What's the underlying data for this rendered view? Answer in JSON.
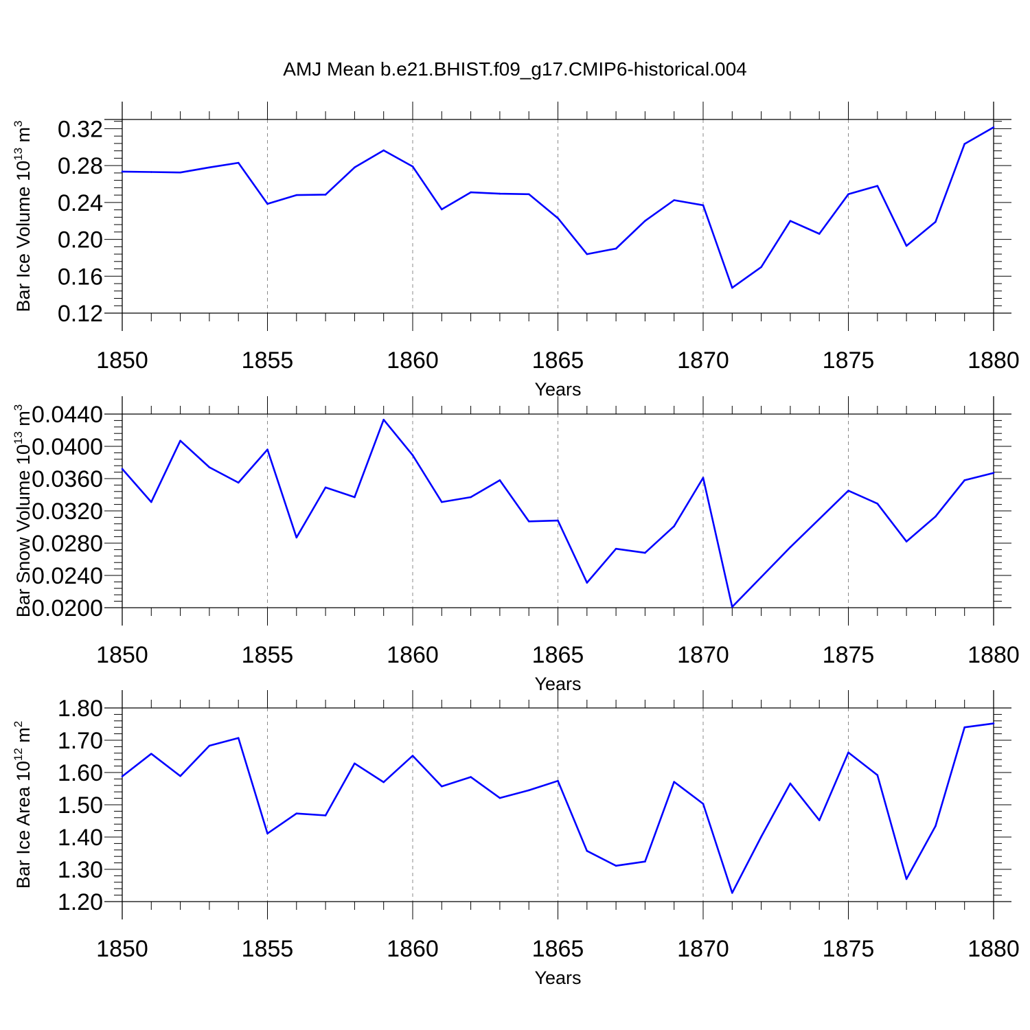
{
  "title": "AMJ Mean b.e21.BHIST.f09_g17.CMIP6-historical.004",
  "line_color": "#0000ff",
  "chart_data": [
    {
      "type": "line",
      "ylabel": "Bar Ice Volume 10",
      "ylabel_exp": "13",
      "ylabel_unit": "m",
      "ylabel_unit_exp": "3",
      "xlabel": "Years",
      "xlim": [
        1850,
        1880
      ],
      "ylim": [
        0.12,
        0.33
      ],
      "yticks": [
        "0.12",
        "0.16",
        "0.20",
        "0.24",
        "0.28",
        "0.32"
      ],
      "xticks": [
        "1850",
        "1855",
        "1860",
        "1865",
        "1870",
        "1875",
        "1880"
      ],
      "grid": "vertical dashed at 5-year ticks",
      "x": [
        1850,
        1851,
        1852,
        1853,
        1854,
        1855,
        1856,
        1857,
        1858,
        1859,
        1860,
        1861,
        1862,
        1863,
        1864,
        1865,
        1866,
        1867,
        1868,
        1869,
        1870,
        1871,
        1872,
        1873,
        1874,
        1875,
        1876,
        1877,
        1878,
        1879,
        1880
      ],
      "values": [
        0.2735,
        0.273,
        0.2725,
        0.278,
        0.283,
        0.2385,
        0.248,
        0.2485,
        0.278,
        0.2965,
        0.279,
        0.2325,
        0.251,
        0.2495,
        0.249,
        0.223,
        0.184,
        0.19,
        0.22,
        0.2425,
        0.237,
        0.1475,
        0.17,
        0.22,
        0.206,
        0.249,
        0.258,
        0.193,
        0.219,
        0.3035,
        0.3215
      ]
    },
    {
      "type": "line",
      "ylabel": "Bar Snow Volume 10",
      "ylabel_exp": "13",
      "ylabel_unit": "m",
      "ylabel_unit_exp": "3",
      "xlabel": "Years",
      "xlim": [
        1850,
        1880
      ],
      "ylim": [
        0.02,
        0.044
      ],
      "yticks": [
        "0.0200",
        "0.0240",
        "0.0280",
        "0.0320",
        "0.0360",
        "0.0400",
        "0.0440"
      ],
      "xticks": [
        "1850",
        "1855",
        "1860",
        "1865",
        "1870",
        "1875",
        "1880"
      ],
      "grid": "vertical dashed at 5-year ticks",
      "x": [
        1850,
        1851,
        1852,
        1853,
        1854,
        1855,
        1856,
        1857,
        1858,
        1859,
        1860,
        1861,
        1862,
        1863,
        1864,
        1865,
        1866,
        1867,
        1868,
        1869,
        1870,
        1871,
        1872,
        1873,
        1874,
        1875,
        1876,
        1877,
        1878,
        1879,
        1880
      ],
      "values": [
        0.0372,
        0.0331,
        0.0407,
        0.0374,
        0.0355,
        0.0396,
        0.0287,
        0.0349,
        0.0337,
        0.0433,
        0.0389,
        0.0331,
        0.0337,
        0.0358,
        0.0307,
        0.0308,
        0.0231,
        0.0273,
        0.0268,
        0.0301,
        0.0361,
        0.0201,
        0.0238,
        0.0275,
        0.031,
        0.0345,
        0.0329,
        0.0282,
        0.0313,
        0.0358,
        0.0367
      ]
    },
    {
      "type": "line",
      "ylabel": "Bar Ice Area 10",
      "ylabel_exp": "12",
      "ylabel_unit": "m",
      "ylabel_unit_exp": "2",
      "xlabel": "Years",
      "xlim": [
        1850,
        1880
      ],
      "ylim": [
        1.2,
        1.8
      ],
      "yticks": [
        "1.20",
        "1.30",
        "1.40",
        "1.50",
        "1.60",
        "1.70",
        "1.80"
      ],
      "xticks": [
        "1850",
        "1855",
        "1860",
        "1865",
        "1870",
        "1875",
        "1880"
      ],
      "grid": "vertical dashed at 5-year ticks",
      "x": [
        1850,
        1851,
        1852,
        1853,
        1854,
        1855,
        1856,
        1857,
        1858,
        1859,
        1860,
        1861,
        1862,
        1863,
        1864,
        1865,
        1866,
        1867,
        1868,
        1869,
        1870,
        1871,
        1872,
        1873,
        1874,
        1875,
        1876,
        1877,
        1878,
        1879,
        1880
      ],
      "values": [
        1.588,
        1.658,
        1.589,
        1.683,
        1.707,
        1.411,
        1.473,
        1.467,
        1.628,
        1.57,
        1.652,
        1.557,
        1.586,
        1.521,
        1.545,
        1.574,
        1.357,
        1.311,
        1.324,
        1.571,
        1.503,
        1.227,
        1.401,
        1.566,
        1.452,
        1.662,
        1.592,
        1.27,
        1.434,
        1.74,
        1.752
      ]
    }
  ]
}
